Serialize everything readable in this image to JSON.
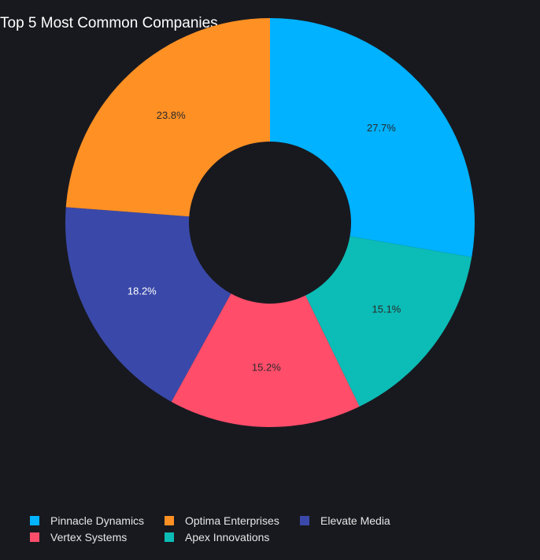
{
  "chart_data": {
    "type": "pie",
    "variant": "donut",
    "title": "Top 5 Most Common Companies",
    "slices": [
      {
        "label": "Pinnacle Dynamics",
        "value": 27.7,
        "display": "27.7%",
        "color": "#00b2ff"
      },
      {
        "label": "Apex Innovations",
        "value": 15.1,
        "display": "15.1%",
        "color": "#0cbcb6"
      },
      {
        "label": "Vertex Systems",
        "value": 15.2,
        "display": "15.2%",
        "color": "#ff4d6a"
      },
      {
        "label": "Elevate Media",
        "value": 18.2,
        "display": "18.2%",
        "color": "#3a49a9"
      },
      {
        "label": "Optima Enterprises",
        "value": 23.8,
        "display": "23.8%",
        "color": "#ff9024"
      }
    ],
    "legend": {
      "placement": "bottom-left",
      "items": [
        {
          "label": "Pinnacle Dynamics",
          "color": "#00b2ff"
        },
        {
          "label": "Optima Enterprises",
          "color": "#ff9024"
        },
        {
          "label": "Elevate Media",
          "color": "#3a49a9"
        },
        {
          "label": "Vertex Systems",
          "color": "#ff4d6a"
        },
        {
          "label": "Apex Innovations",
          "color": "#0cbcb6"
        }
      ]
    },
    "colors": {
      "background": "#18191f",
      "label_dark": "#2a2a2a",
      "label_light": "#ffffff"
    }
  }
}
